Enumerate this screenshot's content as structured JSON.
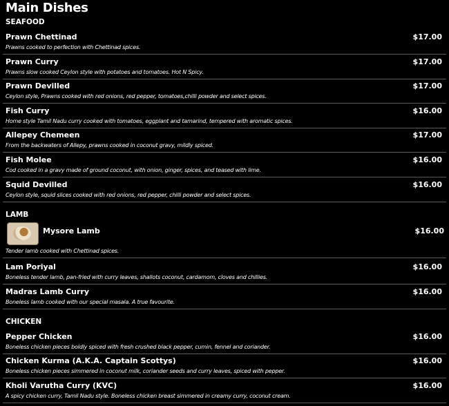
{
  "title": "Main Dishes",
  "sections": [
    {
      "heading": "SEAFOOD",
      "items": [
        {
          "name": "Prawn Chettinad",
          "price": "$17.00",
          "desc": "Prawns cooked to perfection with Chettinad spices."
        },
        {
          "name": "Prawn Curry",
          "price": "$17.00",
          "desc": "Prawns slow cooked Ceylon style with potatoes and tomatoes. Hot N Spicy."
        },
        {
          "name": "Prawn Devilled",
          "price": "$17.00",
          "desc": "Ceylon style, Prawns cooked with red onions, red pepper, tomatoes,chilli powder and select spices."
        },
        {
          "name": "Fish Curry",
          "price": "$16.00",
          "desc": "Home style Tamil Nadu curry cooked with tomatoes, eggplant and tamarind, tempered with aromatic spices."
        },
        {
          "name": "Allepey Chemeen",
          "price": "$17.00",
          "desc": "From the backwaters of Allepy, prawns cooked in coconut gravy, mildly spiced."
        },
        {
          "name": "Fish Molee",
          "price": "$16.00",
          "desc": "Cod cooked in a gravy made of ground coconut, with onion, ginger, spices, and teased with lime."
        },
        {
          "name": "Squid Devilled",
          "price": "$16.00",
          "desc": "Ceylon style, squid slices cooked with red onions, red pepper, chilli powder and select spices."
        }
      ]
    },
    {
      "heading": "LAMB",
      "items": [
        {
          "name": "Mysore Lamb",
          "price": "$16.00",
          "desc": "Tender lamb cooked with Chettinad spices.",
          "icon": "dish-photo"
        },
        {
          "name": "Lam Poriyal",
          "price": "$16.00",
          "desc": "Boneless tender lamb, pan-fried with curry leaves, shallots coconut, cardamom, cloves and chillies."
        },
        {
          "name": "Madras Lamb Curry",
          "price": "$16.00",
          "desc": "Boneless lamb cooked with our special masala. A true favourite."
        }
      ]
    },
    {
      "heading": "CHICKEN",
      "items": [
        {
          "name": "Pepper Chicken",
          "price": "$16.00",
          "desc": "Boneless chicken pieces boldly spiced with fresh crushed black pepper, cumin, fennel and coriander."
        },
        {
          "name": "Chicken Kurma (A.K.A. Captain Scottys)",
          "price": "$16.00",
          "desc": "Boneless chicken pieces simmered in coconut milk, coriander seeds and curry leaves, spiced with pepper."
        },
        {
          "name": "Kholi Varutha Curry (KVC)",
          "price": "$16.00",
          "desc": "A spicy chicken curry, Tamil Nadu style. Boneless chicken breast simmered in creamy curry, coconut cream."
        }
      ]
    }
  ]
}
